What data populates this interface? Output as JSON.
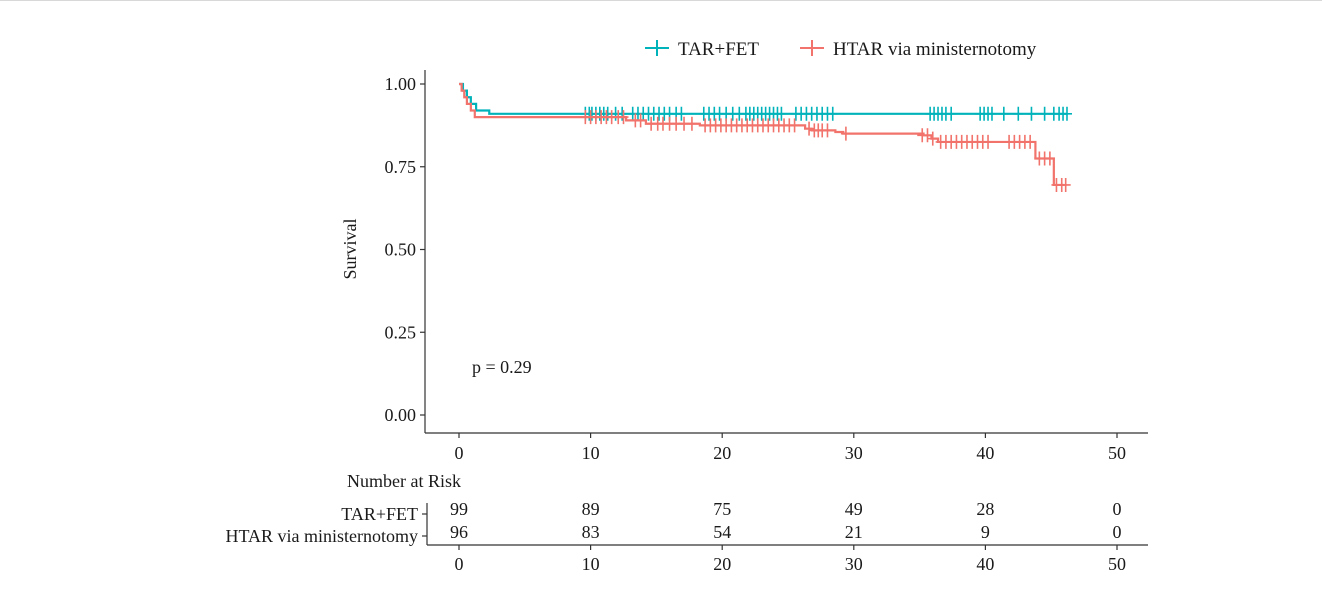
{
  "chart_data": [
    {
      "type": "line",
      "subtype": "kaplan-meier",
      "title": "",
      "xlabel": "",
      "ylabel": "Survival",
      "xlim": [
        0,
        50
      ],
      "ylim": [
        0,
        1
      ],
      "x_ticks": [
        "0",
        "10",
        "20",
        "30",
        "40",
        "50"
      ],
      "y_ticks": [
        "0.00",
        "0.25",
        "0.50",
        "0.75",
        "1.00"
      ],
      "grid": false,
      "legend_placement": "top",
      "annotation": "p = 0.29",
      "series": [
        {
          "name": "TAR+FET",
          "color": "#00b3ba",
          "steps": [
            [
              0,
              1.0
            ],
            [
              0.3,
              0.98
            ],
            [
              0.6,
              0.96
            ],
            [
              0.9,
              0.94
            ],
            [
              1.3,
              0.92
            ],
            [
              2.3,
              0.91
            ],
            [
              46.2,
              0.91
            ]
          ],
          "censored": [
            [
              9.6,
              0.91
            ],
            [
              9.9,
              0.91
            ],
            [
              10.1,
              0.91
            ],
            [
              10.4,
              0.91
            ],
            [
              10.7,
              0.91
            ],
            [
              11.0,
              0.91
            ],
            [
              11.3,
              0.91
            ],
            [
              11.9,
              0.91
            ],
            [
              12.4,
              0.91
            ],
            [
              13.2,
              0.91
            ],
            [
              13.6,
              0.91
            ],
            [
              14.0,
              0.91
            ],
            [
              14.4,
              0.91
            ],
            [
              14.8,
              0.91
            ],
            [
              15.2,
              0.91
            ],
            [
              15.6,
              0.91
            ],
            [
              16.0,
              0.91
            ],
            [
              16.5,
              0.91
            ],
            [
              16.9,
              0.91
            ],
            [
              18.6,
              0.91
            ],
            [
              19.0,
              0.91
            ],
            [
              19.4,
              0.91
            ],
            [
              19.8,
              0.91
            ],
            [
              20.3,
              0.91
            ],
            [
              20.8,
              0.91
            ],
            [
              21.3,
              0.91
            ],
            [
              21.8,
              0.91
            ],
            [
              22.1,
              0.91
            ],
            [
              22.4,
              0.91
            ],
            [
              22.7,
              0.91
            ],
            [
              23.0,
              0.91
            ],
            [
              23.3,
              0.91
            ],
            [
              23.6,
              0.91
            ],
            [
              23.9,
              0.91
            ],
            [
              24.2,
              0.91
            ],
            [
              24.5,
              0.91
            ],
            [
              25.6,
              0.91
            ],
            [
              26.0,
              0.91
            ],
            [
              26.4,
              0.91
            ],
            [
              26.8,
              0.91
            ],
            [
              27.2,
              0.91
            ],
            [
              27.6,
              0.91
            ],
            [
              28.0,
              0.91
            ],
            [
              28.4,
              0.91
            ],
            [
              35.8,
              0.91
            ],
            [
              36.1,
              0.91
            ],
            [
              36.4,
              0.91
            ],
            [
              36.7,
              0.91
            ],
            [
              37.0,
              0.91
            ],
            [
              37.4,
              0.91
            ],
            [
              39.6,
              0.91
            ],
            [
              39.9,
              0.91
            ],
            [
              40.2,
              0.91
            ],
            [
              40.5,
              0.91
            ],
            [
              41.4,
              0.91
            ],
            [
              42.5,
              0.91
            ],
            [
              43.5,
              0.91
            ],
            [
              44.5,
              0.91
            ],
            [
              45.2,
              0.91
            ],
            [
              45.6,
              0.91
            ],
            [
              45.9,
              0.91
            ],
            [
              46.2,
              0.91
            ]
          ]
        },
        {
          "name": "HTAR via ministernotomy",
          "color": "#f1736b",
          "steps": [
            [
              0,
              1.0
            ],
            [
              0.2,
              0.98
            ],
            [
              0.4,
              0.96
            ],
            [
              0.6,
              0.94
            ],
            [
              0.9,
              0.92
            ],
            [
              1.2,
              0.9
            ],
            [
              12.7,
              0.89
            ],
            [
              14.2,
              0.88
            ],
            [
              18.3,
              0.875
            ],
            [
              26.3,
              0.865
            ],
            [
              26.8,
              0.86
            ],
            [
              28.6,
              0.855
            ],
            [
              29.2,
              0.85
            ],
            [
              35.3,
              0.845
            ],
            [
              35.9,
              0.835
            ],
            [
              36.4,
              0.825
            ],
            [
              43.8,
              0.775
            ],
            [
              45.2,
              0.695
            ],
            [
              46.0,
              0.695
            ]
          ],
          "censored": [
            [
              9.6,
              0.9
            ],
            [
              10.0,
              0.9
            ],
            [
              10.4,
              0.9
            ],
            [
              10.8,
              0.9
            ],
            [
              11.2,
              0.9
            ],
            [
              11.6,
              0.9
            ],
            [
              12.1,
              0.9
            ],
            [
              12.5,
              0.9
            ],
            [
              13.4,
              0.89
            ],
            [
              13.8,
              0.89
            ],
            [
              14.6,
              0.88
            ],
            [
              15.1,
              0.88
            ],
            [
              15.5,
              0.88
            ],
            [
              16.0,
              0.88
            ],
            [
              16.5,
              0.88
            ],
            [
              17.1,
              0.88
            ],
            [
              17.7,
              0.88
            ],
            [
              18.7,
              0.875
            ],
            [
              19.1,
              0.875
            ],
            [
              19.5,
              0.875
            ],
            [
              19.9,
              0.875
            ],
            [
              20.3,
              0.875
            ],
            [
              20.7,
              0.875
            ],
            [
              21.1,
              0.875
            ],
            [
              21.5,
              0.875
            ],
            [
              21.9,
              0.875
            ],
            [
              22.3,
              0.875
            ],
            [
              22.7,
              0.875
            ],
            [
              23.1,
              0.875
            ],
            [
              23.5,
              0.875
            ],
            [
              23.9,
              0.875
            ],
            [
              24.3,
              0.875
            ],
            [
              24.7,
              0.875
            ],
            [
              25.1,
              0.875
            ],
            [
              25.5,
              0.875
            ],
            [
              26.6,
              0.865
            ],
            [
              27.0,
              0.86
            ],
            [
              27.3,
              0.86
            ],
            [
              27.6,
              0.86
            ],
            [
              28.0,
              0.86
            ],
            [
              29.4,
              0.85
            ],
            [
              35.2,
              0.845
            ],
            [
              35.6,
              0.845
            ],
            [
              36.0,
              0.835
            ],
            [
              36.6,
              0.825
            ],
            [
              37.0,
              0.825
            ],
            [
              37.4,
              0.825
            ],
            [
              37.8,
              0.825
            ],
            [
              38.2,
              0.825
            ],
            [
              38.6,
              0.825
            ],
            [
              39.0,
              0.825
            ],
            [
              39.4,
              0.825
            ],
            [
              39.8,
              0.825
            ],
            [
              40.2,
              0.825
            ],
            [
              41.8,
              0.825
            ],
            [
              42.2,
              0.825
            ],
            [
              42.6,
              0.825
            ],
            [
              43.0,
              0.825
            ],
            [
              43.4,
              0.825
            ],
            [
              44.1,
              0.775
            ],
            [
              44.5,
              0.775
            ],
            [
              44.9,
              0.775
            ],
            [
              45.4,
              0.695
            ],
            [
              45.8,
              0.695
            ],
            [
              46.1,
              0.695
            ]
          ]
        }
      ]
    },
    {
      "type": "table",
      "title": "Number at Risk",
      "x_ticks": [
        "0",
        "10",
        "20",
        "30",
        "40",
        "50"
      ],
      "xlim": [
        0,
        50
      ],
      "rows": [
        {
          "name": "TAR+FET",
          "times": [
            0,
            10,
            20,
            30,
            40,
            50
          ],
          "values": [
            "99",
            "89",
            "75",
            "49",
            "28",
            "0"
          ]
        },
        {
          "name": "HTAR via ministernotomy",
          "times": [
            0,
            10,
            20,
            30,
            40,
            50
          ],
          "values": [
            "96",
            "83",
            "54",
            "21",
            "9",
            "0"
          ]
        }
      ]
    }
  ]
}
